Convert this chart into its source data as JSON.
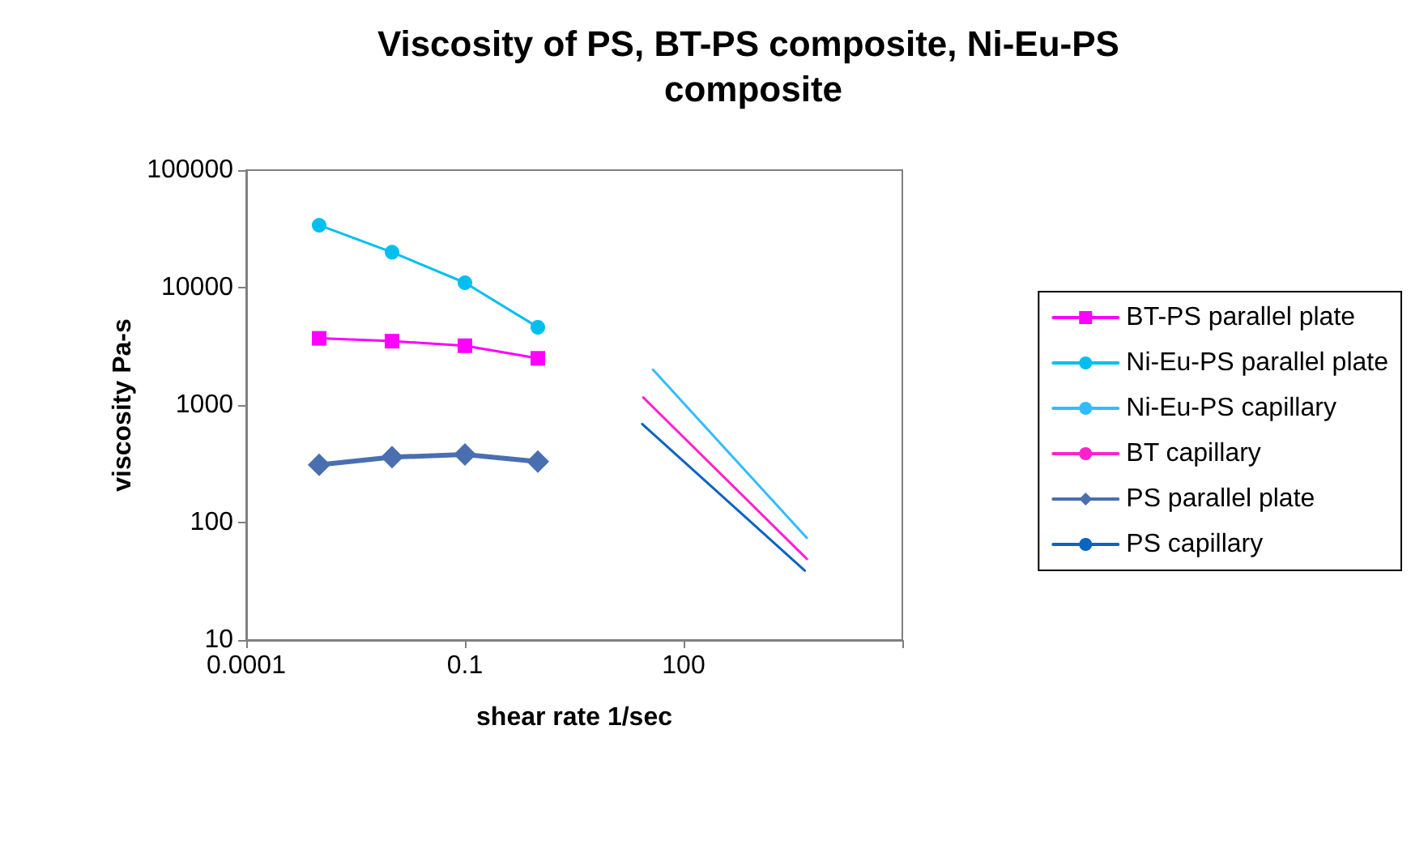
{
  "chart_data": {
    "type": "line",
    "title": "Viscosity of PS, BT-PS composite, Ni-Eu-PS composite",
    "xlabel": "shear rate 1/sec",
    "ylabel": "viscosity Pa-s",
    "log": "xy",
    "grid": false,
    "legend": "right",
    "xlim": [
      0.0001,
      100000
    ],
    "xticks": [
      0.0001,
      0.1,
      100,
      {
        "value": 100000,
        "label": null
      }
    ],
    "ylim": [
      10,
      100000
    ],
    "yticks": [
      10,
      100,
      1000,
      10000,
      100000
    ],
    "series": [
      {
        "name": "BT-PS parallel plate",
        "color": "#ff00ff",
        "marker": "square",
        "x": [
          0.001,
          0.01,
          0.1,
          1
        ],
        "values": [
          3700,
          3500,
          3200,
          2500
        ]
      },
      {
        "name": "Ni-Eu-PS parallel plate",
        "color": "#00bfee",
        "marker": "circle",
        "x": [
          0.001,
          0.01,
          0.1,
          1
        ],
        "values": [
          34000,
          20000,
          11000,
          4600
        ]
      },
      {
        "name": "Ni-Eu-PS capillary",
        "color": "#33bbff",
        "marker": "none",
        "x": [
          38,
          4900
        ],
        "values": [
          2000,
          74
        ]
      },
      {
        "name": "BT capillary",
        "color": "#ff22cc",
        "marker": "none",
        "x": [
          28,
          4900
        ],
        "values": [
          1160,
          49
        ]
      },
      {
        "name": "PS parallel plate",
        "color": "#4a6fb0",
        "marker": "diamond",
        "x": [
          0.001,
          0.01,
          0.1,
          1
        ],
        "values": [
          310,
          360,
          380,
          330
        ]
      },
      {
        "name": "PS capillary",
        "color": "#0a64c0",
        "marker": "none",
        "x": [
          27,
          4600
        ],
        "values": [
          690,
          39
        ]
      }
    ]
  }
}
